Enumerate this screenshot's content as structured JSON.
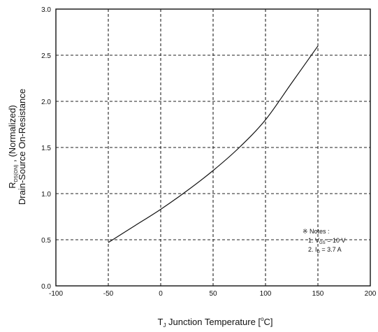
{
  "chart_data": {
    "type": "line",
    "xlabel": {
      "symbol": "T",
      "sub": "J",
      "text": " Junction Temperature [",
      "sup": "o",
      "unit": "C]"
    },
    "ylabel": {
      "line1_symbol": "R",
      "line1_sub": "DS(ON)",
      "line1_text": " , (Normalized)",
      "line2": "Drain-Source On-Resistance"
    },
    "xlim": [
      -100,
      200
    ],
    "ylim": [
      0.0,
      3.0
    ],
    "xticks": [
      -100,
      -50,
      0,
      50,
      100,
      150,
      200
    ],
    "yticks": [
      0.0,
      0.5,
      1.0,
      1.5,
      2.0,
      2.5,
      3.0
    ],
    "xtick_labels": [
      "-100",
      "-50",
      "0",
      "50",
      "100",
      "150",
      "200"
    ],
    "ytick_labels": [
      "0.0",
      "0.5",
      "1.0",
      "1.5",
      "2.0",
      "2.5",
      "3.0"
    ],
    "grid": true,
    "series": [
      {
        "x": [
          -50,
          -25,
          0,
          25,
          50,
          75,
          100,
          125,
          150
        ],
        "y": [
          0.47,
          0.65,
          0.83,
          1.03,
          1.25,
          1.5,
          1.8,
          2.2,
          2.6
        ]
      }
    ],
    "annotation": {
      "title": "※ Notes :",
      "line1": {
        "prefix": "1. V",
        "sub": "GS",
        "suffix": " = 10 V"
      },
      "line2": {
        "prefix": "2. I",
        "sub": "D",
        "suffix": " = 3.7 A"
      }
    }
  }
}
